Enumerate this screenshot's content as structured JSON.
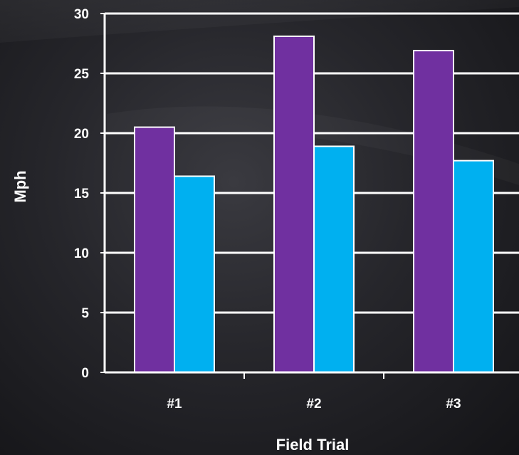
{
  "chart_data": {
    "type": "bar",
    "title": "",
    "xlabel": "Field Trial",
    "ylabel": "Mph",
    "categories": [
      "#1",
      "#2",
      "#3"
    ],
    "series": [
      {
        "values": [
          20.5,
          28.1,
          26.9
        ],
        "color": "#7030a0"
      },
      {
        "values": [
          16.4,
          18.9,
          17.7
        ],
        "color": "#00b0f0"
      }
    ],
    "ylim": [
      0,
      30
    ],
    "yticks": [
      0,
      5,
      10,
      15,
      20,
      25,
      30
    ],
    "grid": true,
    "legend": "none",
    "colors": {
      "axis": "#ffffff",
      "text": "#ffffff",
      "bar_border": "#ffffff"
    }
  }
}
